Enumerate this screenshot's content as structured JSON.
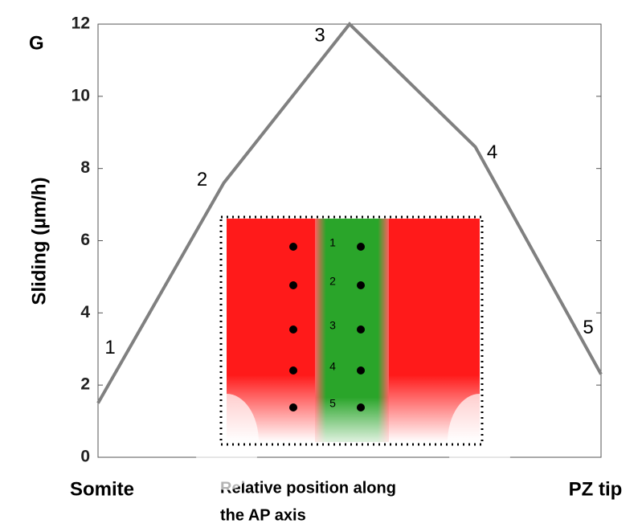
{
  "chart_data": {
    "type": "line",
    "panel_label": "G",
    "ylabel": "Sliding (µm/h)",
    "xlabel_lines": [
      "Relative position along",
      "the AP axis"
    ],
    "x_start_label": "Somite",
    "x_end_label": "PZ tip",
    "x": [
      0,
      0.25,
      0.5,
      0.75,
      1
    ],
    "xlim": [
      0,
      1
    ],
    "series": [
      {
        "color": "#808080",
        "values": [
          1.5,
          7.6,
          12,
          8.6,
          2.3
        ]
      }
    ],
    "point_labels": [
      "1",
      "2",
      "3",
      "4",
      "5"
    ],
    "ylim": [
      0,
      12
    ],
    "yticks": [
      0,
      2,
      4,
      6,
      8,
      10,
      12
    ],
    "inset_labels": [
      "1",
      "2",
      "3",
      "4",
      "5"
    ]
  }
}
